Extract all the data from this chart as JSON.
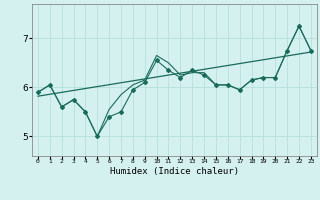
{
  "title": "",
  "xlabel": "Humidex (Indice chaleur)",
  "bg_color": "#d4f0ef",
  "line_color": "#1a6b5a",
  "grid_color": "#b0ddd8",
  "xlim": [
    -0.5,
    23.5
  ],
  "ylim": [
    4.6,
    7.7
  ],
  "yticks": [
    5,
    6,
    7
  ],
  "xticks": [
    0,
    1,
    2,
    3,
    4,
    5,
    6,
    7,
    8,
    9,
    10,
    11,
    12,
    13,
    14,
    15,
    16,
    17,
    18,
    19,
    20,
    21,
    22,
    23
  ],
  "series1_x": [
    0,
    1,
    2,
    3,
    4,
    5,
    6,
    7,
    8,
    9,
    10,
    11,
    12,
    13,
    14,
    15,
    16,
    17,
    18,
    19,
    20,
    21,
    22,
    23
  ],
  "series1_y": [
    5.9,
    6.05,
    5.6,
    5.75,
    5.5,
    5.0,
    5.4,
    5.5,
    5.95,
    6.1,
    6.55,
    6.35,
    6.2,
    6.35,
    6.25,
    6.05,
    6.05,
    5.95,
    6.15,
    6.2,
    6.2,
    6.75,
    7.25,
    6.75
  ],
  "series2_x": [
    0,
    1,
    2,
    3,
    4,
    5,
    6,
    7,
    8,
    9,
    10,
    11,
    12,
    13,
    14,
    15,
    16,
    17,
    18,
    19,
    20,
    21,
    22,
    23
  ],
  "series2_y": [
    5.9,
    6.05,
    5.6,
    5.75,
    5.5,
    5.0,
    5.55,
    5.85,
    6.05,
    6.15,
    6.65,
    6.5,
    6.25,
    6.3,
    6.3,
    6.05,
    6.05,
    5.95,
    6.15,
    6.2,
    6.2,
    6.75,
    7.25,
    6.75
  ],
  "trend_x": [
    0,
    23
  ],
  "trend_y": [
    5.82,
    6.72
  ]
}
